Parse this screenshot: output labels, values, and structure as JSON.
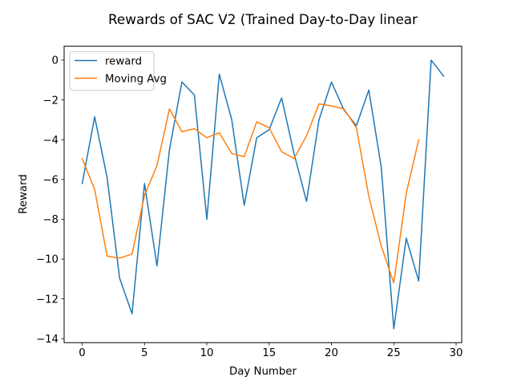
{
  "chart_data": {
    "type": "line",
    "title": "Rewards of SAC V2 (Trained Day-to-Day linear",
    "xlabel": "Day Number",
    "ylabel": "Reward",
    "xlim": [
      -1.45,
      30.45
    ],
    "ylim": [
      -14.2,
      0.7
    ],
    "xticks": [
      0,
      5,
      10,
      15,
      20,
      25,
      30
    ],
    "yticks": [
      0,
      -2,
      -4,
      -6,
      -8,
      -10,
      -12,
      -14
    ],
    "grid": false,
    "legend_position": "top-left",
    "series": [
      {
        "name": "reward",
        "color": "#1f77b4",
        "x": [
          0,
          1,
          2,
          3,
          4,
          5,
          6,
          7,
          8,
          9,
          10,
          11,
          12,
          13,
          14,
          15,
          16,
          17,
          18,
          19,
          20,
          21,
          22,
          23,
          24,
          25,
          26,
          27,
          28,
          29
        ],
        "y": [
          -6.2,
          -2.85,
          -5.9,
          -10.95,
          -12.75,
          -6.2,
          -10.35,
          -4.5,
          -1.1,
          -1.75,
          -8.0,
          -0.7,
          -3.0,
          -7.3,
          -3.9,
          -3.5,
          -1.9,
          -4.7,
          -7.1,
          -3.0,
          -1.1,
          -2.5,
          -3.3,
          -1.5,
          -5.4,
          -13.5,
          -8.95,
          -11.1,
          0.0,
          -0.8
        ]
      },
      {
        "name": "Moving Avg",
        "color": "#ff7f0e",
        "x": [
          0,
          1,
          2,
          3,
          4,
          5,
          6,
          7,
          8,
          9,
          10,
          11,
          12,
          13,
          14,
          15,
          16,
          17,
          18,
          19,
          20,
          21,
          22,
          23,
          24,
          25,
          26,
          27
        ],
        "y": [
          -4.95,
          -6.5,
          -9.85,
          -9.95,
          -9.75,
          -6.8,
          -5.3,
          -2.45,
          -3.6,
          -3.45,
          -3.9,
          -3.65,
          -4.7,
          -4.85,
          -3.1,
          -3.4,
          -4.6,
          -4.95,
          -3.8,
          -2.2,
          -2.3,
          -2.45,
          -3.4,
          -6.85,
          -9.35,
          -11.2,
          -6.7,
          -4.0
        ]
      }
    ]
  }
}
